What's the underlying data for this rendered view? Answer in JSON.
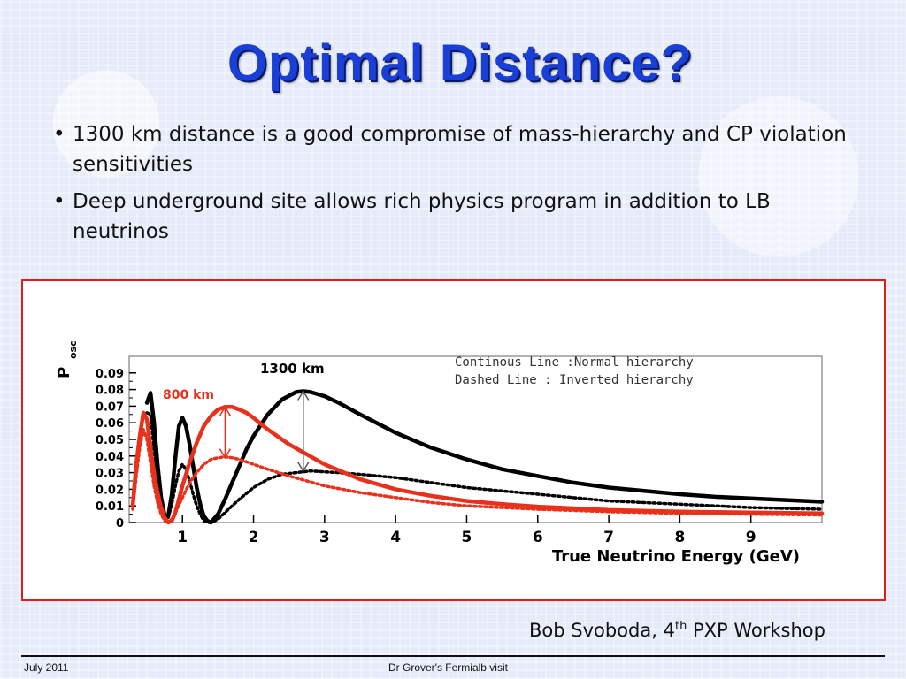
{
  "slide": {
    "title": "Optimal Distance?",
    "bullets": [
      "1300 km distance is a good compromise of mass-hierarchy and CP violation sensitivities",
      "Deep underground site allows rich physics program in addition to LB neutrinos"
    ],
    "credit": {
      "prefix": "Bob Svoboda, 4",
      "sup": "th",
      "suffix": " PXP Workshop"
    },
    "footer": {
      "left": "July 2011",
      "center": "Dr Grover's Fermialb visit"
    }
  },
  "colors": {
    "title": "#1a3fd6",
    "frame": "#e31b1b",
    "series_1300": "#000000",
    "series_800": "#e8301a"
  },
  "chart_data": {
    "type": "line",
    "xlabel": "True Neutrino Energy (GeV)",
    "ylabel": "P",
    "ylabel_sub": "osc",
    "xlim": [
      0.25,
      10
    ],
    "ylim": [
      0,
      0.1
    ],
    "x_ticks": [
      1,
      2,
      3,
      4,
      5,
      6,
      7,
      8,
      9
    ],
    "y_ticks": [
      0,
      0.01,
      0.02,
      0.03,
      0.04,
      0.05,
      0.06,
      0.07,
      0.08,
      0.09
    ],
    "y_tick_labels": [
      "0",
      "0.01",
      "0.02",
      "0.03",
      "0.04",
      "0.05",
      "0.06",
      "0.07",
      "0.08",
      "0.09"
    ],
    "grid": false,
    "legend_text": [
      "Continous Line :Normal hierarchy",
      "Dashed Line : Inverted hierarchy"
    ],
    "legend_position": "top-right",
    "annotations": [
      "1300 km",
      "800 km"
    ],
    "series": [
      {
        "baseline": "1300 km",
        "hierarchy": "normal",
        "style": "solid",
        "color": "#000000",
        "x": [
          0.5,
          0.55,
          0.6,
          0.65,
          0.7,
          0.75,
          0.8,
          0.85,
          0.9,
          0.95,
          1.0,
          1.05,
          1.1,
          1.15,
          1.2,
          1.25,
          1.3,
          1.35,
          1.4,
          1.5,
          1.6,
          1.7,
          1.8,
          1.9,
          2.0,
          2.2,
          2.4,
          2.6,
          2.7,
          2.8,
          3.0,
          3.2,
          3.5,
          4.0,
          4.5,
          5.0,
          5.5,
          6.0,
          6.5,
          7.0,
          7.5,
          8.0,
          8.5,
          9.0,
          9.5,
          10.0
        ],
        "y": [
          0.072,
          0.078,
          0.06,
          0.035,
          0.015,
          0.004,
          0.004,
          0.017,
          0.039,
          0.058,
          0.063,
          0.058,
          0.047,
          0.034,
          0.021,
          0.011,
          0.004,
          0.001,
          0.0,
          0.005,
          0.014,
          0.024,
          0.034,
          0.044,
          0.052,
          0.065,
          0.074,
          0.0785,
          0.079,
          0.0785,
          0.076,
          0.072,
          0.065,
          0.054,
          0.045,
          0.038,
          0.032,
          0.028,
          0.024,
          0.021,
          0.019,
          0.017,
          0.0155,
          0.0145,
          0.0135,
          0.0125
        ]
      },
      {
        "baseline": "1300 km",
        "hierarchy": "inverted",
        "style": "dashed",
        "color": "#000000",
        "x": [
          0.5,
          0.55,
          0.6,
          0.65,
          0.7,
          0.75,
          0.8,
          0.85,
          0.9,
          0.95,
          1.0,
          1.05,
          1.1,
          1.15,
          1.2,
          1.25,
          1.3,
          1.35,
          1.4,
          1.5,
          1.6,
          1.7,
          1.8,
          2.0,
          2.2,
          2.4,
          2.6,
          2.8,
          3.0,
          3.2,
          3.5,
          4.0,
          4.5,
          5.0,
          5.5,
          6.0,
          7.0,
          8.0,
          9.0,
          10.0
        ],
        "y": [
          0.066,
          0.065,
          0.045,
          0.025,
          0.01,
          0.003,
          0.003,
          0.011,
          0.022,
          0.031,
          0.035,
          0.032,
          0.025,
          0.017,
          0.01,
          0.005,
          0.001,
          0.0,
          0.0,
          0.002,
          0.006,
          0.01,
          0.014,
          0.021,
          0.026,
          0.029,
          0.03,
          0.031,
          0.0305,
          0.03,
          0.029,
          0.027,
          0.024,
          0.021,
          0.019,
          0.017,
          0.013,
          0.011,
          0.009,
          0.008
        ]
      },
      {
        "baseline": "800 km",
        "hierarchy": "normal",
        "style": "solid",
        "color": "#e8301a",
        "x": [
          0.3,
          0.35,
          0.4,
          0.45,
          0.5,
          0.55,
          0.6,
          0.65,
          0.7,
          0.75,
          0.8,
          0.85,
          0.9,
          0.95,
          1.0,
          1.1,
          1.2,
          1.3,
          1.4,
          1.5,
          1.6,
          1.7,
          1.8,
          1.9,
          2.0,
          2.2,
          2.5,
          3.0,
          3.5,
          4.0,
          4.5,
          5.0,
          5.5,
          6.0,
          7.0,
          8.0,
          9.0,
          10.0
        ],
        "y": [
          0.01,
          0.035,
          0.052,
          0.066,
          0.062,
          0.045,
          0.03,
          0.018,
          0.009,
          0.003,
          0.0,
          0.001,
          0.006,
          0.014,
          0.022,
          0.036,
          0.048,
          0.058,
          0.064,
          0.068,
          0.0695,
          0.0695,
          0.068,
          0.066,
          0.063,
          0.056,
          0.047,
          0.035,
          0.026,
          0.02,
          0.016,
          0.013,
          0.011,
          0.0095,
          0.0075,
          0.0065,
          0.006,
          0.0055
        ]
      },
      {
        "baseline": "800 km",
        "hierarchy": "inverted",
        "style": "dashed",
        "color": "#e8301a",
        "x": [
          0.3,
          0.35,
          0.4,
          0.45,
          0.5,
          0.55,
          0.6,
          0.65,
          0.7,
          0.75,
          0.8,
          0.85,
          0.9,
          1.0,
          1.1,
          1.2,
          1.3,
          1.4,
          1.5,
          1.6,
          1.7,
          1.8,
          2.0,
          2.2,
          2.5,
          3.0,
          3.5,
          4.0,
          4.5,
          5.0,
          6.0,
          7.0,
          8.0,
          9.0,
          10.0
        ],
        "y": [
          0.008,
          0.028,
          0.045,
          0.056,
          0.05,
          0.036,
          0.022,
          0.012,
          0.005,
          0.001,
          0.0,
          0.002,
          0.006,
          0.015,
          0.024,
          0.03,
          0.035,
          0.038,
          0.039,
          0.0395,
          0.039,
          0.038,
          0.035,
          0.032,
          0.028,
          0.022,
          0.018,
          0.015,
          0.012,
          0.01,
          0.008,
          0.0065,
          0.0055,
          0.005,
          0.0045
        ]
      }
    ]
  }
}
